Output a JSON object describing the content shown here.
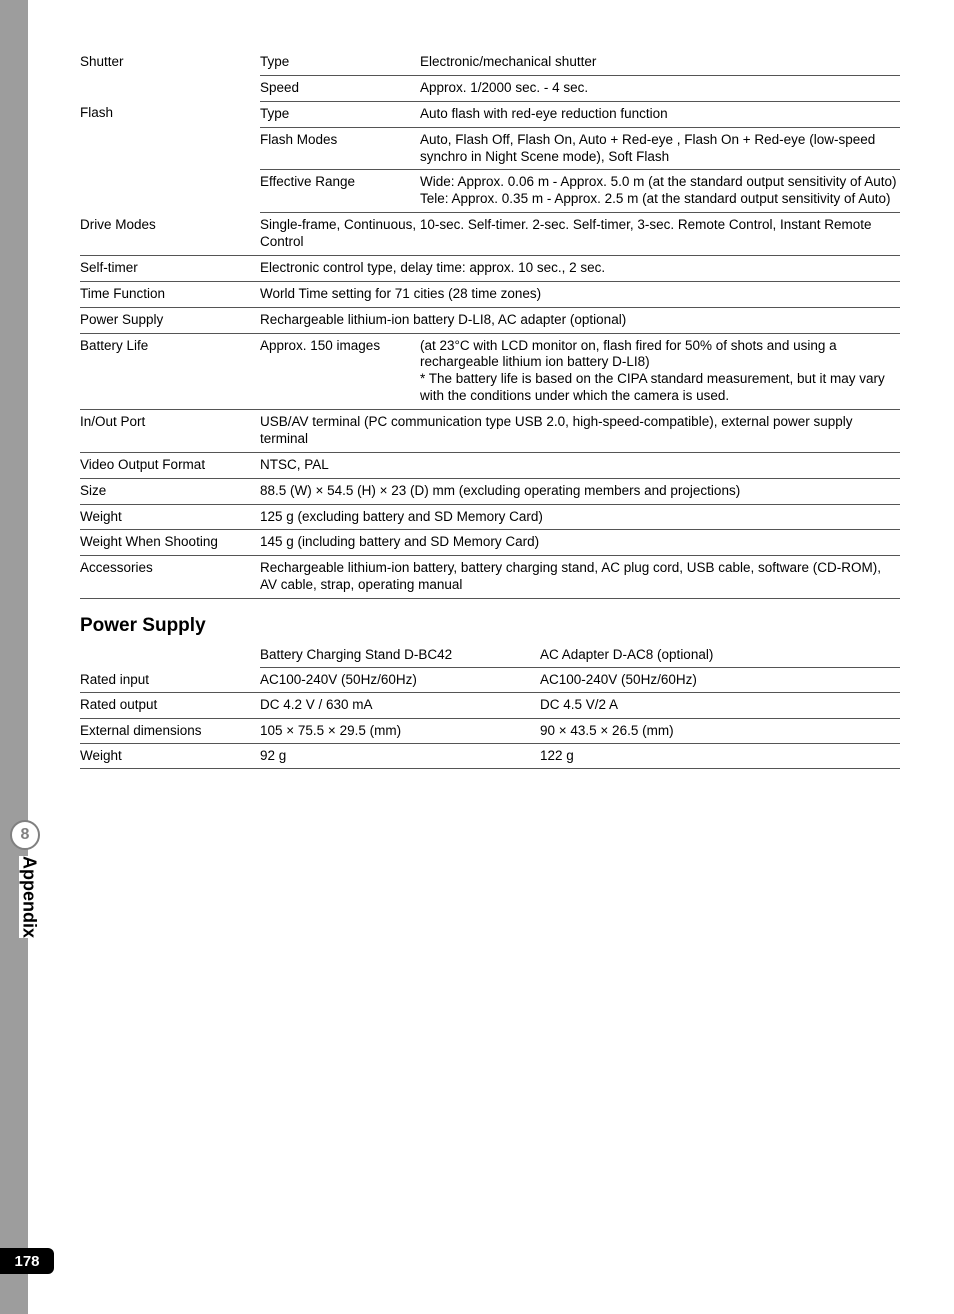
{
  "spec_rows": [
    {
      "cells": [
        "Shutter",
        "Type",
        "Electronic/mechanical shutter"
      ],
      "rowspan1": 2,
      "border_c1": false
    },
    {
      "cells": [
        "",
        "Speed",
        "Approx. 1/2000 sec. - 4 sec."
      ],
      "skip1": true
    },
    {
      "cells": [
        "Flash",
        "Type",
        "Auto flash with red-eye reduction function"
      ],
      "rowspan1": 3,
      "border_c1": false
    },
    {
      "cells": [
        "",
        "Flash Modes",
        "Auto, Flash Off, Flash On, Auto + Red-eye , Flash On + Red-eye (low-speed synchro in Night Scene mode), Soft Flash"
      ],
      "skip1": true
    },
    {
      "cells": [
        "",
        "Effective Range",
        "Wide: Approx. 0.06 m - Approx. 5.0 m (at the standard output sensitivity of Auto)\nTele: Approx. 0.35 m - Approx. 2.5 m (at the standard output sensitivity of Auto)"
      ],
      "skip1": true
    },
    {
      "cells": [
        "Drive Modes",
        "",
        "Single-frame, Continuous, 10-sec. Self-timer.  2-sec. Self-timer, 3-sec. Remote Control, Instant Remote Control"
      ],
      "span23": true
    },
    {
      "cells": [
        "Self-timer",
        "",
        "Electronic control type, delay time: approx. 10 sec., 2 sec."
      ],
      "span23": true
    },
    {
      "cells": [
        "Time Function",
        "",
        "World Time setting for 71 cities (28 time zones)"
      ],
      "span23": true
    },
    {
      "cells": [
        "Power Supply",
        "",
        "Rechargeable lithium-ion battery D-LI8, AC adapter (optional)"
      ],
      "span23": true
    },
    {
      "cells": [
        "Battery Life",
        "Approx. 150 images",
        "(at 23°C with LCD monitor on, flash fired for 50% of shots and using a rechargeable lithium ion battery D-LI8)\n* The battery life is based on the CIPA standard measurement, but it may vary with the conditions under which the camera is used."
      ]
    },
    {
      "cells": [
        "In/Out Port",
        "",
        "USB/AV terminal (PC communication type USB 2.0, high-speed-compatible), external power supply terminal"
      ],
      "span23": true
    },
    {
      "cells": [
        "Video Output Format",
        "",
        "NTSC, PAL"
      ],
      "span23": true
    },
    {
      "cells": [
        "Size",
        "",
        "88.5 (W) × 54.5 (H) × 23 (D) mm (excluding operating members and projections)"
      ],
      "span23": true
    },
    {
      "cells": [
        "Weight",
        "",
        "125 g (excluding battery and SD Memory Card)"
      ],
      "span23": true
    },
    {
      "cells": [
        "Weight When Shooting",
        "",
        "145 g (including battery and SD Memory Card)"
      ],
      "span23": true
    },
    {
      "cells": [
        "Accessories",
        "",
        "Rechargeable lithium-ion battery, battery charging stand, AC plug cord, USB cable, software (CD-ROM), AV cable, strap, operating manual"
      ],
      "span23": true
    }
  ],
  "power_supply": {
    "heading": "Power Supply",
    "header": [
      "",
      "Battery Charging Stand D-BC42",
      "AC Adapter D-AC8 (optional)"
    ],
    "rows": [
      [
        "Rated input",
        "AC100-240V (50Hz/60Hz)",
        "AC100-240V (50Hz/60Hz)"
      ],
      [
        "Rated output",
        "DC 4.2 V / 630 mA",
        "DC 4.5 V/2 A"
      ],
      [
        "External dimensions",
        "105 × 75.5 × 29.5 (mm)",
        "90 × 43.5 × 26.5 (mm)"
      ],
      [
        "Weight",
        "92 g",
        "122 g"
      ]
    ]
  },
  "side": {
    "number": "8",
    "label": "Appendix"
  },
  "page_number": "178",
  "colors": {
    "gray_bar": "#9d9d9d",
    "border": "#555555",
    "circle_border": "#808080"
  }
}
